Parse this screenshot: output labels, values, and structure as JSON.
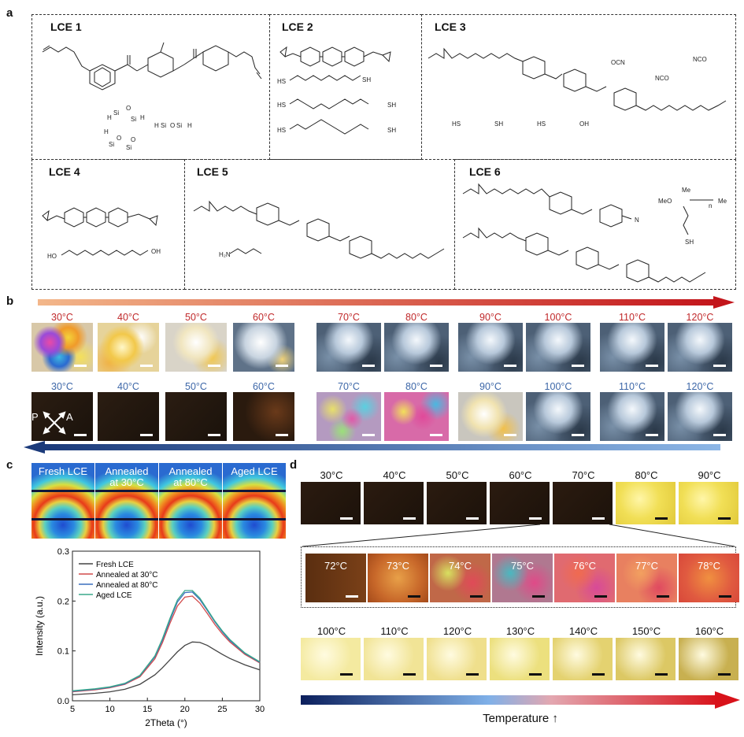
{
  "panels": {
    "a": "a",
    "b": "b",
    "c": "c",
    "d": "d"
  },
  "panel_a": {
    "boxes": [
      "LCE 1",
      "LCE 2",
      "LCE 3",
      "LCE 4",
      "LCE 5",
      "LCE 6"
    ],
    "chem_labels": {
      "si_h": "H",
      "si": "Si",
      "si_o": "O",
      "sh": "SH",
      "oh": "OH",
      "ocn": "OCN",
      "nco": "NCO",
      "nco2": "NCO",
      "cn": "N",
      "h2n": "H₂N",
      "meo": "MeO",
      "me": "Me",
      "me2": "Me",
      "n": "n"
    }
  },
  "panel_b": {
    "heating_labels": [
      "30°C",
      "40°C",
      "50°C",
      "60°C",
      "70°C",
      "80°C",
      "90°C",
      "100°C",
      "110°C",
      "120°C"
    ],
    "cooling_labels": [
      "30°C",
      "40°C",
      "50°C",
      "60°C",
      "70°C",
      "80°C",
      "90°C",
      "100°C",
      "110°C",
      "120°C"
    ],
    "polarizer": {
      "p": "P",
      "a": "A"
    },
    "colors": {
      "heating_label": "#c0282a",
      "cooling_label": "#3d67a8"
    }
  },
  "panel_c": {
    "saxs_labels": [
      "Fresh LCE",
      "Annealed\nat 30°C",
      "Annealed\nat 80°C",
      "Aged LCE"
    ],
    "chart_data": {
      "type": "line",
      "xlabel": "2Theta (°)",
      "ylabel": "Intensity (a.u.)",
      "xlim": [
        5,
        30
      ],
      "ylim": [
        0.0,
        0.3
      ],
      "xticks": [
        5,
        10,
        15,
        20,
        25,
        30
      ],
      "yticks": [
        0.0,
        0.1,
        0.2,
        0.3
      ],
      "legend": "top-left",
      "series": [
        {
          "name": "Fresh LCE",
          "color": "#444444",
          "x": [
            5,
            8,
            10,
            12,
            14,
            16,
            17,
            18,
            19,
            20,
            21,
            22,
            23,
            24,
            25,
            26,
            28,
            30
          ],
          "y": [
            0.012,
            0.015,
            0.018,
            0.023,
            0.033,
            0.052,
            0.066,
            0.082,
            0.098,
            0.111,
            0.118,
            0.117,
            0.111,
            0.102,
            0.093,
            0.085,
            0.072,
            0.062
          ]
        },
        {
          "name": "Annealed at 30°C",
          "color": "#d24b4b",
          "x": [
            5,
            8,
            10,
            12,
            14,
            16,
            17,
            18,
            19,
            20,
            21,
            22,
            23,
            24,
            25,
            26,
            28,
            30
          ],
          "y": [
            0.018,
            0.022,
            0.026,
            0.033,
            0.048,
            0.084,
            0.116,
            0.155,
            0.19,
            0.208,
            0.21,
            0.196,
            0.175,
            0.153,
            0.134,
            0.118,
            0.093,
            0.076
          ]
        },
        {
          "name": "Annealed at 80°C",
          "color": "#3a6fbe",
          "x": [
            5,
            8,
            10,
            12,
            14,
            16,
            17,
            18,
            19,
            20,
            21,
            22,
            23,
            24,
            25,
            26,
            28,
            30
          ],
          "y": [
            0.019,
            0.023,
            0.027,
            0.034,
            0.05,
            0.088,
            0.121,
            0.161,
            0.198,
            0.217,
            0.218,
            0.203,
            0.181,
            0.158,
            0.138,
            0.121,
            0.095,
            0.077
          ]
        },
        {
          "name": "Aged LCE",
          "color": "#3aa88a",
          "x": [
            5,
            8,
            10,
            12,
            14,
            16,
            17,
            18,
            19,
            20,
            21,
            22,
            23,
            24,
            25,
            26,
            28,
            30
          ],
          "y": [
            0.02,
            0.024,
            0.028,
            0.035,
            0.051,
            0.09,
            0.124,
            0.165,
            0.202,
            0.221,
            0.221,
            0.206,
            0.183,
            0.16,
            0.14,
            0.123,
            0.096,
            0.078
          ]
        }
      ]
    }
  },
  "panel_d": {
    "row1_labels": [
      "30°C",
      "40°C",
      "50°C",
      "60°C",
      "70°C",
      "80°C",
      "90°C"
    ],
    "zoom_labels": [
      "72°C",
      "73°C",
      "74°C",
      "75°C",
      "76°C",
      "77°C",
      "78°C"
    ],
    "row3_labels": [
      "100°C",
      "110°C",
      "120°C",
      "130°C",
      "140°C",
      "150°C",
      "160°C"
    ],
    "temperature_label": "Temperature ↑"
  }
}
